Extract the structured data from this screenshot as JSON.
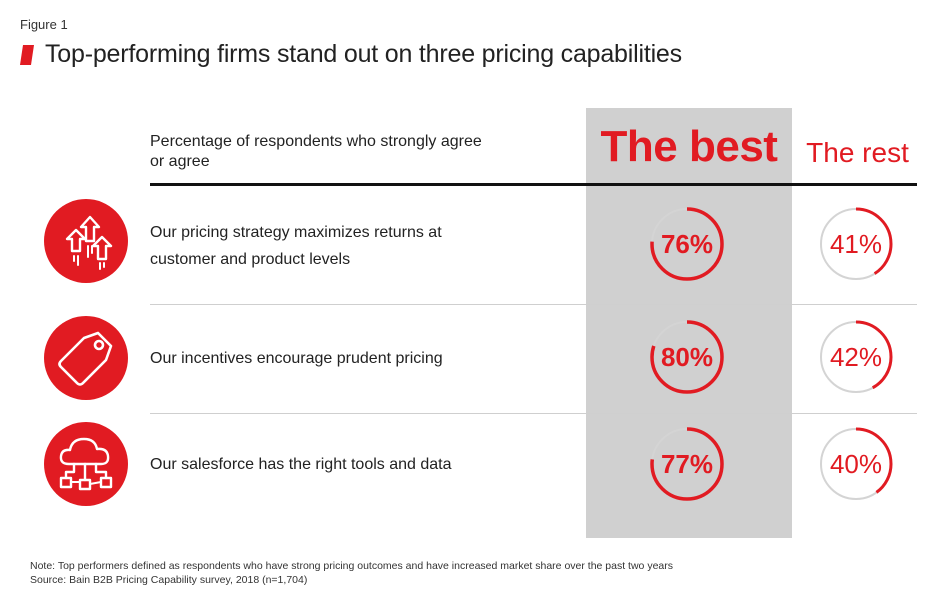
{
  "figure_label": "Figure 1",
  "title": "Top-performing firms stand out on three pricing capabilities",
  "colors": {
    "accent": "#e11b22",
    "column_bg": "#d0d0d0",
    "track": "#d4d4d4"
  },
  "chart_data": {
    "type": "table",
    "column_header": "Percentage of respondents who strongly agree or agree",
    "groups": [
      "The best",
      "The rest"
    ],
    "rows": [
      {
        "icon": "arrows-up-icon",
        "label_lines": [
          "Our pricing strategy maximizes returns at",
          "customer and product levels"
        ],
        "best": 76,
        "rest": 41,
        "best_label": "76%",
        "rest_label": "41%"
      },
      {
        "icon": "price-tag-icon",
        "label_lines": [
          "Our incentives encourage prudent pricing"
        ],
        "best": 80,
        "rest": 42,
        "best_label": "80%",
        "rest_label": "42%"
      },
      {
        "icon": "cloud-network-icon",
        "label_lines": [
          "Our salesforce has the right tools and data"
        ],
        "best": 77,
        "rest": 40,
        "best_label": "77%",
        "rest_label": "40%"
      }
    ],
    "unit": "%",
    "range": [
      0,
      100
    ]
  },
  "header_lines": [
    "Percentage of respondents who strongly agree",
    "or agree"
  ],
  "note": "Note: Top performers defined as respondents who have strong pricing outcomes and have increased market share over the past two years",
  "source": "Source: Bain B2B Pricing Capability survey, 2018 (n=1,704)"
}
